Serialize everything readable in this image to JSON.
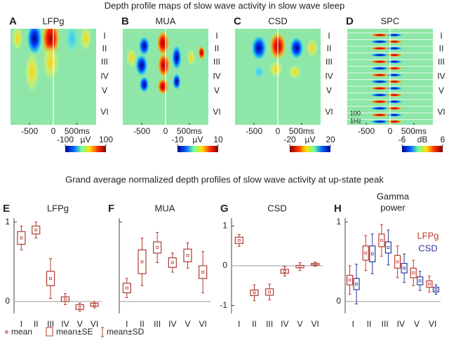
{
  "title": "Depth profile maps of slow wave activity in slow wave sleep",
  "subtitle": "Grand average normalized depth profiles of slow wave activity at up-state peak",
  "layers": [
    "I",
    "II",
    "III",
    "IV",
    "V",
    "VI"
  ],
  "maps": [
    {
      "letter": "A",
      "title": "LFPg",
      "xlim": [
        -900,
        900
      ],
      "xticks": [
        -500,
        0,
        {
          "value": 500,
          "label": "500ms"
        }
      ],
      "clim": [
        -100,
        100
      ],
      "cticks": [
        -100,
        100
      ],
      "unit": "µV",
      "colorbar": [
        "#00008f",
        "#0060ff",
        "#70ffa0",
        "#ffe000",
        "#ff3000",
        "#800000"
      ]
    },
    {
      "letter": "B",
      "title": "MUA",
      "xlim": [
        -900,
        900
      ],
      "xticks": [
        -500,
        0,
        {
          "value": 500,
          "label": "500ms"
        }
      ],
      "clim": [
        -10,
        10
      ],
      "cticks": [
        -10,
        10
      ],
      "unit": "µV",
      "colorbar": [
        "#00008f",
        "#0060ff",
        "#70ffa0",
        "#ffe000",
        "#ff3000",
        "#800000"
      ]
    },
    {
      "letter": "C",
      "title": "CSD",
      "xlim": [
        -900,
        900
      ],
      "xticks": [
        -500,
        0,
        {
          "value": 500,
          "label": "500ms"
        }
      ],
      "clim": [
        -20,
        20
      ],
      "cticks": [
        -20,
        20
      ],
      "unit": "µV",
      "colorbar": [
        "#800000",
        "#ff3000",
        "#ffe000",
        "#70ffa0",
        "#0060ff",
        "#00008f"
      ]
    },
    {
      "letter": "D",
      "title": "SPC",
      "xlim": [
        -900,
        900
      ],
      "xticks": [
        -500,
        0,
        {
          "value": 500,
          "label": "500ms"
        }
      ],
      "clim": [
        -6,
        6
      ],
      "cticks": [
        -6,
        6
      ],
      "unit": "dB",
      "notes": [
        "100",
        "1Hz"
      ],
      "colorbar": [
        "#00008f",
        "#0060ff",
        "#70ffa0",
        "#ffe000",
        "#ff3000",
        "#800000"
      ]
    }
  ],
  "chart_data": [
    {
      "type": "box",
      "letter": "E",
      "title": "LFPg",
      "categories": [
        "I",
        "II",
        "III",
        "IV",
        "V",
        "VI"
      ],
      "ylim": [
        -0.15,
        1.05
      ],
      "yticks": [
        0,
        1
      ],
      "series": [
        {
          "color": "#b03a2e",
          "values": [
            0.8,
            0.9,
            0.29,
            0.03,
            -0.07,
            -0.04
          ],
          "se": [
            0.08,
            0.05,
            0.09,
            0.03,
            0.03,
            0.02
          ],
          "sd": [
            0.15,
            0.1,
            0.25,
            0.07,
            0.05,
            0.04
          ]
        }
      ]
    },
    {
      "type": "box",
      "letter": "F",
      "title": "MUA",
      "categories": [
        "I",
        "II",
        "III",
        "IV",
        "V",
        "VI"
      ],
      "ylim": [
        -0.15,
        1.05
      ],
      "yticks": [
        0,
        1
      ],
      "ytick_labels": false,
      "series": [
        {
          "color": "#b03a2e",
          "values": [
            0.17,
            0.5,
            0.68,
            0.49,
            0.58,
            0.37
          ],
          "se": [
            0.06,
            0.15,
            0.07,
            0.06,
            0.08,
            0.08
          ],
          "sd": [
            0.12,
            0.3,
            0.19,
            0.12,
            0.16,
            0.26
          ]
        }
      ]
    },
    {
      "type": "box",
      "letter": "G",
      "title": "CSD",
      "categories": [
        "I",
        "II",
        "III",
        "IV",
        "V",
        "VI"
      ],
      "ylim": [
        -1.2,
        1.2
      ],
      "yticks": [
        -1,
        0,
        1
      ],
      "series": [
        {
          "color": "#b03a2e",
          "values": [
            0.64,
            -0.68,
            -0.66,
            -0.14,
            -0.02,
            0.04
          ],
          "se": [
            0.08,
            0.07,
            0.08,
            0.05,
            0.03,
            0.02
          ],
          "sd": [
            0.15,
            0.2,
            0.2,
            0.12,
            0.1,
            0.05
          ]
        }
      ]
    },
    {
      "type": "box",
      "letter": "H",
      "title_lines": [
        "Gamma",
        "power"
      ],
      "categories": [
        "I",
        "II",
        "III",
        "IV",
        "V",
        "VI"
      ],
      "ylim": [
        -0.15,
        1.05
      ],
      "yticks": [
        0,
        1
      ],
      "series": [
        {
          "name": "LFPg",
          "color": "#c0392b",
          "values": [
            0.27,
            0.61,
            0.77,
            0.5,
            0.36,
            0.22
          ],
          "se": [
            0.06,
            0.09,
            0.08,
            0.08,
            0.06,
            0.04
          ],
          "sd": [
            0.18,
            0.22,
            0.2,
            0.2,
            0.16,
            0.1
          ]
        },
        {
          "name": "CSD",
          "color": "#2e3a9e",
          "values": [
            0.22,
            0.6,
            0.68,
            0.42,
            0.26,
            0.15
          ],
          "se": [
            0.07,
            0.1,
            0.07,
            0.06,
            0.05,
            0.03
          ],
          "sd": [
            0.25,
            0.25,
            0.22,
            0.18,
            0.12,
            0.06
          ]
        }
      ]
    }
  ],
  "legend": {
    "mean": "mean",
    "se": "mean±SE",
    "sd": "mean±SD"
  }
}
